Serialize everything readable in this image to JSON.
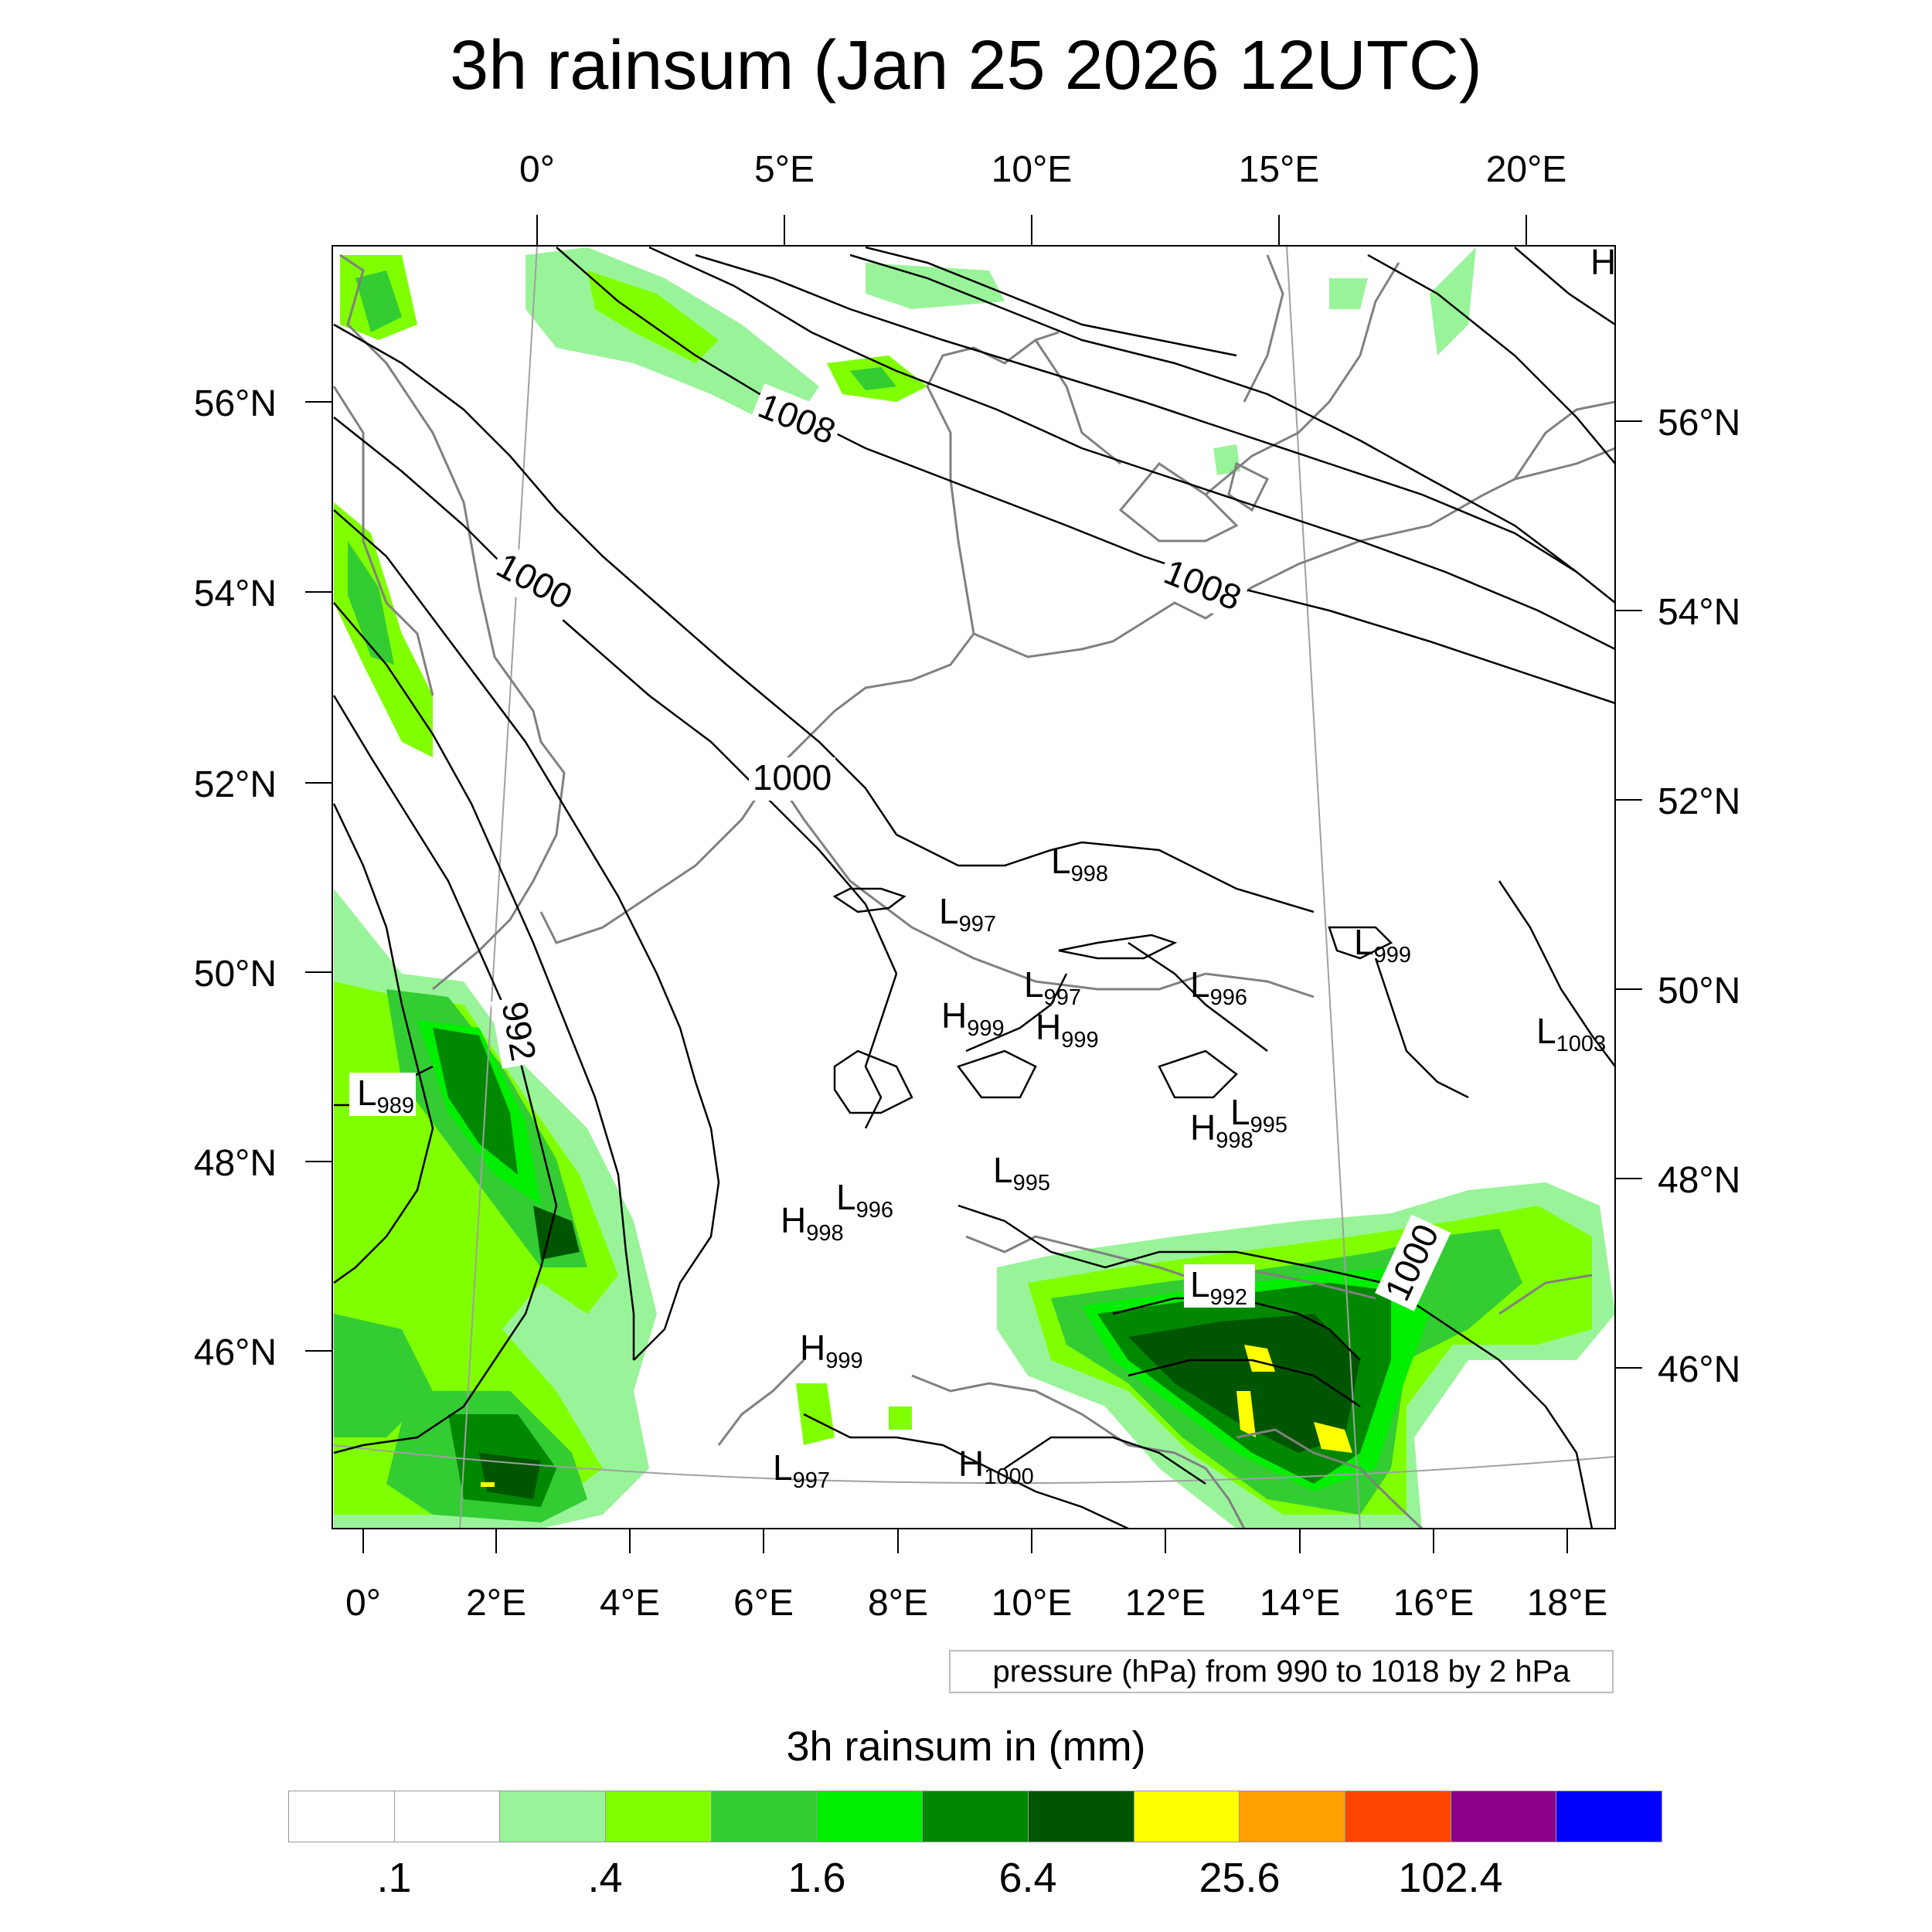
{
  "title": "3h rainsum (Jan 25 2026 12UTC)",
  "top_lon_ticks": [
    "0°",
    "5°E",
    "10°E",
    "15°E",
    "20°E"
  ],
  "bottom_lon_ticks": [
    "0°",
    "2°E",
    "4°E",
    "6°E",
    "8°E",
    "10°E",
    "12°E",
    "14°E",
    "16°E",
    "18°E"
  ],
  "left_lat_ticks": [
    "56°N",
    "54°N",
    "52°N",
    "50°N",
    "48°N",
    "46°N"
  ],
  "right_lat_ticks": [
    "56°N",
    "54°N",
    "52°N",
    "50°N",
    "48°N",
    "46°N"
  ],
  "isobar_labels": [
    "1008",
    "1008",
    "1000",
    "1000",
    "992",
    "1000"
  ],
  "pressure_centers": [
    {
      "type": "L",
      "value": "998"
    },
    {
      "type": "L",
      "value": "997"
    },
    {
      "type": "L",
      "value": "999"
    },
    {
      "type": "L",
      "value": "997"
    },
    {
      "type": "L",
      "value": "996"
    },
    {
      "type": "H",
      "value": "999"
    },
    {
      "type": "H",
      "value": "999"
    },
    {
      "type": "L",
      "value": "1003"
    },
    {
      "type": "L",
      "value": "989"
    },
    {
      "type": "L",
      "value": "995"
    },
    {
      "type": "H",
      "value": "998"
    },
    {
      "type": "L",
      "value": "995"
    },
    {
      "type": "L",
      "value": "996"
    },
    {
      "type": "H",
      "value": "998"
    },
    {
      "type": "L",
      "value": "992"
    },
    {
      "type": "H",
      "value": "999"
    },
    {
      "type": "L",
      "value": "997"
    },
    {
      "type": "H",
      "value": "1000"
    },
    {
      "type": "H",
      "value": ""
    }
  ],
  "pressure_note": "pressure (hPa) from 990 to 1018 by 2 hPa",
  "legend": {
    "title": "3h rainsum in (mm)",
    "colors": [
      "#ffffff",
      "#ffffff",
      "#99f499",
      "#80ff00",
      "#33cc33",
      "#00ee00",
      "#008800",
      "#005500",
      "#ffff00",
      "#ffa000",
      "#ff4500",
      "#8b008b",
      "#0000ff"
    ],
    "tick_labels": [
      ".1",
      ".4",
      "1.6",
      "6.4",
      "25.6",
      "102.4"
    ]
  },
  "colors": {
    "coastline": "#808080",
    "isobar": "#000000",
    "graticule": "#a0a0a0"
  }
}
